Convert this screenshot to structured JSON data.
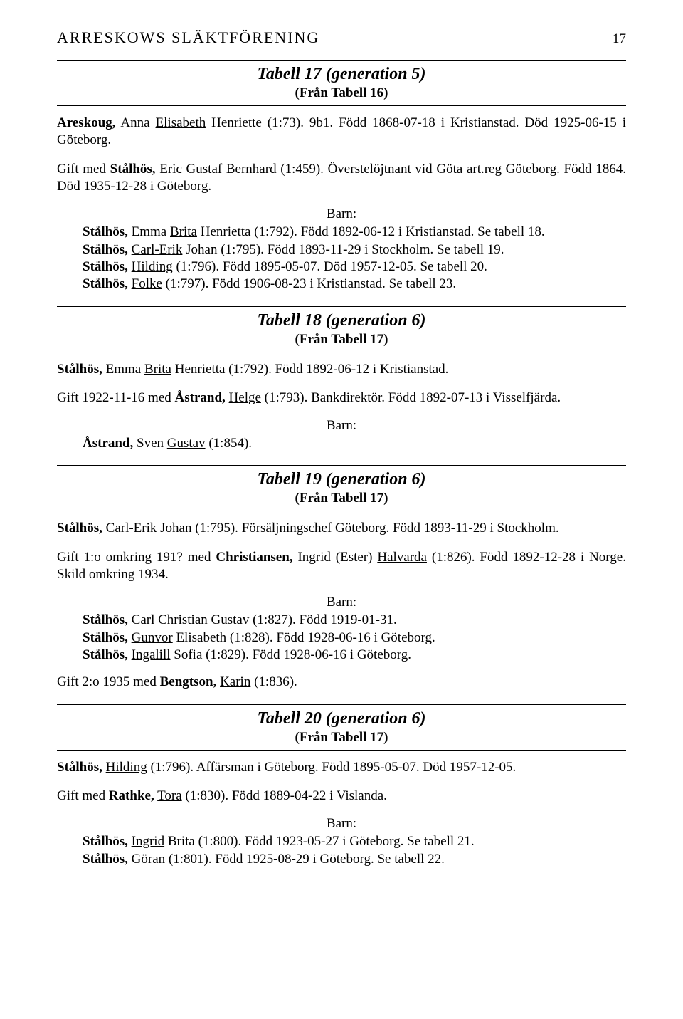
{
  "header": {
    "title": "ARRESKOWS SLÄKTFÖRENING",
    "page": "17"
  },
  "barn_label": "Barn:",
  "t17": {
    "title": "Tabell 17 (generation 5)",
    "from": "(Från Tabell 16)",
    "p1_a": "Areskoug,",
    "p1_b": " Anna ",
    "p1_c": "Elisabeth",
    "p1_d": " Henriette (1:73). 9b1. Född 1868-07-18 i Kristianstad. Död 1925-06-15 i Göteborg.",
    "p2_a": "Gift med ",
    "p2_b": "Stålhös,",
    "p2_c": " Eric ",
    "p2_d": "Gustaf",
    "p2_e": " Bernhard (1:459). Överstelöjtnant vid Göta art.reg Göteborg. Född 1864. Död 1935-12-28 i Göteborg.",
    "c1_a": "Stålhös,",
    "c1_b": " Emma ",
    "c1_c": "Brita",
    "c1_d": " Henrietta (1:792). Född 1892-06-12 i Kristianstad. Se tabell 18.",
    "c2_a": "Stålhös,",
    "c2_b": " ",
    "c2_c": "Carl-Erik",
    "c2_d": " Johan (1:795). Född 1893-11-29 i Stockholm. Se tabell 19.",
    "c3_a": "Stålhös,",
    "c3_b": " ",
    "c3_c": "Hilding",
    "c3_d": " (1:796). Född 1895-05-07. Död 1957-12-05. Se tabell 20.",
    "c4_a": "Stålhös,",
    "c4_b": " ",
    "c4_c": "Folke",
    "c4_d": " (1:797). Född 1906-08-23 i Kristianstad. Se tabell 23."
  },
  "t18": {
    "title": "Tabell 18 (generation 6)",
    "from": "(Från Tabell 17)",
    "p1_a": "Stålhös,",
    "p1_b": " Emma ",
    "p1_c": "Brita",
    "p1_d": " Henrietta (1:792). Född 1892-06-12 i Kristianstad.",
    "p2_a": "Gift 1922-11-16 med ",
    "p2_b": "Åstrand,",
    "p2_c": " ",
    "p2_d": "Helge",
    "p2_e": " (1:793). Bankdirektör. Född 1892-07-13 i Visselfjärda.",
    "c1_a": "Åstrand,",
    "c1_b": " Sven ",
    "c1_c": "Gustav",
    "c1_d": " (1:854)."
  },
  "t19": {
    "title": "Tabell 19 (generation 6)",
    "from": "(Från Tabell 17)",
    "p1_a": "Stålhös,",
    "p1_b": " ",
    "p1_c": "Carl-Erik",
    "p1_d": " Johan (1:795). Försäljningschef Göteborg. Född 1893-11-29 i Stockholm.",
    "p2_a": "Gift 1:o omkring 191? med ",
    "p2_b": "Christiansen,",
    "p2_c": " Ingrid (Ester) ",
    "p2_d": "Halvarda",
    "p2_e": " (1:826). Född 1892-12-28 i Norge. Skild omkring 1934.",
    "c1_a": "Stålhös,",
    "c1_b": " ",
    "c1_c": "Carl",
    "c1_d": " Christian Gustav (1:827). Född 1919-01-31.",
    "c2_a": "Stålhös,",
    "c2_b": " ",
    "c2_c": "Gunvor",
    "c2_d": " Elisabeth (1:828). Född 1928-06-16 i Göteborg.",
    "c3_a": "Stålhös,",
    "c3_b": " ",
    "c3_c": "Ingalill",
    "c3_d": " Sofia (1:829). Född 1928-06-16 i Göteborg.",
    "p3_a": "Gift 2:o 1935 med ",
    "p3_b": "Bengtson,",
    "p3_c": " ",
    "p3_d": "Karin",
    "p3_e": " (1:836)."
  },
  "t20": {
    "title": "Tabell 20 (generation 6)",
    "from": "(Från Tabell 17)",
    "p1_a": "Stålhös,",
    "p1_b": " ",
    "p1_c": "Hilding",
    "p1_d": " (1:796). Affärsman i Göteborg. Född 1895-05-07. Död 1957-12-05.",
    "p2_a": "Gift med ",
    "p2_b": "Rathke,",
    "p2_c": " ",
    "p2_d": "Tora",
    "p2_e": " (1:830). Född 1889-04-22 i Vislanda.",
    "c1_a": "Stålhös,",
    "c1_b": " ",
    "c1_c": "Ingrid",
    "c1_d": " Brita (1:800). Född 1923-05-27 i Göteborg. Se tabell 21.",
    "c2_a": "Stålhös,",
    "c2_b": " ",
    "c2_c": "Göran",
    "c2_d": " (1:801). Född 1925-08-29 i Göteborg. Se tabell 22."
  }
}
